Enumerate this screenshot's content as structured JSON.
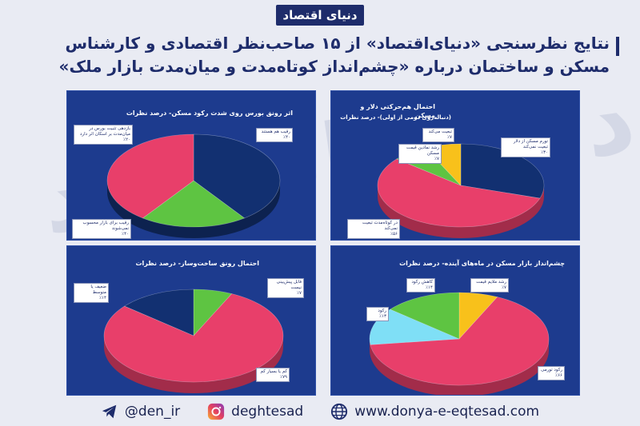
{
  "logo": "دنیای اقتصاد",
  "headline": "نتایج نظرسنجی «دنیای‌اقتصاد» از ۱۵ صاحب‌نظر اقتصادی و کارشناس مسکن و ساختمان درباره «چشم‌انداز کوتاه‌مدت و میان‌مدت بازار ملک»",
  "watermark": "دنیای اقتصاد",
  "colors": {
    "navy": "#1e2c6b",
    "panel": "#1d3b8e",
    "red": "#e83f6a",
    "green": "#5ec442",
    "yellow": "#f8c11b",
    "cyan": "#7fdff6",
    "blue_slice": "#123071"
  },
  "footer": {
    "telegram": "@den_ir",
    "instagram": "deghtesad",
    "website": "www.donya-e-eqtesad.com"
  },
  "chart_data": [
    {
      "type": "pie",
      "title": "اثر رونق بورس روی شدت رکود مسکن- درصد نظرات",
      "slices": [
        {
          "label": "رقیب هم هستند",
          "value": 40,
          "value_text": "٪۴۰",
          "color": "#123071"
        },
        {
          "label": "بازدهی تثبیت بورس در میان‌مدت بر اسکان اثر دارد",
          "value": 20,
          "value_text": "٪۲۰",
          "color": "#5ec442"
        },
        {
          "label": "رقیب برای بازار محسوب نمی‌شوند",
          "value": 40,
          "value_text": "٪۴۰",
          "color": "#e83f6a"
        }
      ]
    },
    {
      "type": "pie",
      "title": "احتمال هم‌حرکتی دلار و مسکن",
      "subtitle": "(دنباله‌روی دومی از اولی)- درصد نظرات",
      "slices": [
        {
          "label": "تورم مسکن از دلار تبعیت نمی‌کند",
          "value": 30,
          "value_text": "٪۳۰",
          "color": "#123071"
        },
        {
          "label": "در کوتاه‌مدت تبعیت نمی‌کند",
          "value": 56,
          "value_text": "٪۵۶",
          "color": "#e83f6a"
        },
        {
          "label": "رشد نمادین قیمت مسکن",
          "value": 7,
          "value_text": "٪۷",
          "color": "#5ec442"
        },
        {
          "label": "تبعیت می‌کند",
          "value": 7,
          "value_text": "٪۷",
          "color": "#f8c11b"
        }
      ]
    },
    {
      "type": "pie",
      "title": "احتمال رونق ساخت‌وساز- درصد نظرات",
      "slices": [
        {
          "label": "قابل پیش‌بینی نیست",
          "value": 7,
          "value_text": "٪۷",
          "color": "#5ec442"
        },
        {
          "label": "کم یا بسیار کم",
          "value": 79,
          "value_text": "٪۷۹",
          "color": "#e83f6a"
        },
        {
          "label": "ضعیف یا متوسط",
          "value": 14,
          "value_text": "٪۱۴",
          "color": "#123071"
        }
      ]
    },
    {
      "type": "pie",
      "title": "چشم‌انداز بازار مسکن در ماه‌های آینده- درصد نظرات",
      "slices": [
        {
          "label": "رشد ملایم قیمت",
          "value": 7,
          "value_text": "٪۷",
          "color": "#f8c11b"
        },
        {
          "label": "رکود تورمی",
          "value": 66,
          "value_text": "٪۶۶",
          "color": "#e83f6a"
        },
        {
          "label": "رکود",
          "value": 13,
          "value_text": "٪۱۳",
          "color": "#7fdff6"
        },
        {
          "label": "کاهش رکود",
          "value": 14,
          "value_text": "٪۱۴",
          "color": "#5ec442"
        }
      ]
    }
  ]
}
